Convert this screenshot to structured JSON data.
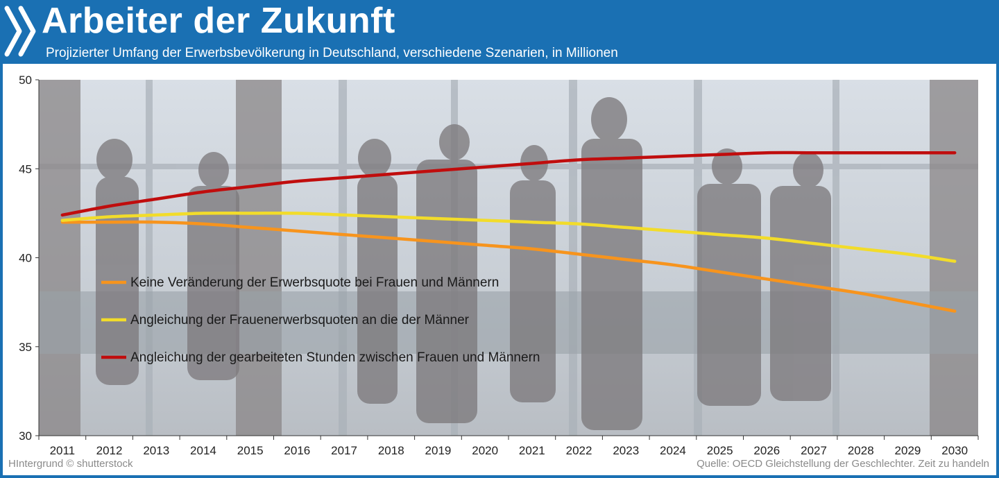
{
  "header": {
    "title": "Arbeiter der Zukunft",
    "subtitle": "Projizierter Umfang der Erwerbsbevölkerung in Deutschland, verschiedene Szenarien, in Millionen",
    "logo_icon": "chevrons-logo-icon"
  },
  "footer": {
    "left": "HIntergrund © shutterstock",
    "right": "Quelle: OECD  Gleichstellung der Geschlechter. Zeit zu handeln"
  },
  "colors": {
    "header_bg": "#1a70b3",
    "series_orange": "#f7941d",
    "series_yellow": "#f2dc2a",
    "series_red": "#c00d0d"
  },
  "chart_data": {
    "type": "line",
    "x": [
      "2011",
      "2012",
      "2013",
      "2014",
      "2015",
      "2016",
      "2017",
      "2018",
      "2019",
      "2020",
      "2021",
      "2022",
      "2023",
      "2024",
      "2025",
      "2026",
      "2027",
      "2028",
      "2029",
      "2030"
    ],
    "ylim": [
      30,
      50
    ],
    "yticks": [
      "30",
      "35",
      "40",
      "45",
      "50"
    ],
    "grid": false,
    "legend_position": "left, inside plot",
    "series": [
      {
        "name": "Keine Veränderung der Erwerbsquote bei Frauen und Männern",
        "color": "#f7941d",
        "values": [
          42.0,
          42.0,
          42.0,
          41.9,
          41.7,
          41.5,
          41.3,
          41.1,
          40.9,
          40.7,
          40.5,
          40.2,
          39.9,
          39.6,
          39.2,
          38.8,
          38.4,
          38.0,
          37.5,
          37.0
        ]
      },
      {
        "name": "Angleichung der Frauenerwerbsquoten an die der Männer",
        "color": "#f2dc2a",
        "values": [
          42.1,
          42.3,
          42.4,
          42.5,
          42.5,
          42.5,
          42.4,
          42.3,
          42.2,
          42.1,
          42.0,
          41.9,
          41.7,
          41.5,
          41.3,
          41.1,
          40.8,
          40.5,
          40.2,
          39.8
        ]
      },
      {
        "name": "Angleichung der gearbeiteten Stunden zwischen Frauen und Männern",
        "color": "#c00d0d",
        "values": [
          42.4,
          42.9,
          43.3,
          43.7,
          44.0,
          44.3,
          44.5,
          44.7,
          44.9,
          45.1,
          45.3,
          45.5,
          45.6,
          45.7,
          45.8,
          45.9,
          45.9,
          45.9,
          45.9,
          45.9
        ]
      }
    ]
  }
}
